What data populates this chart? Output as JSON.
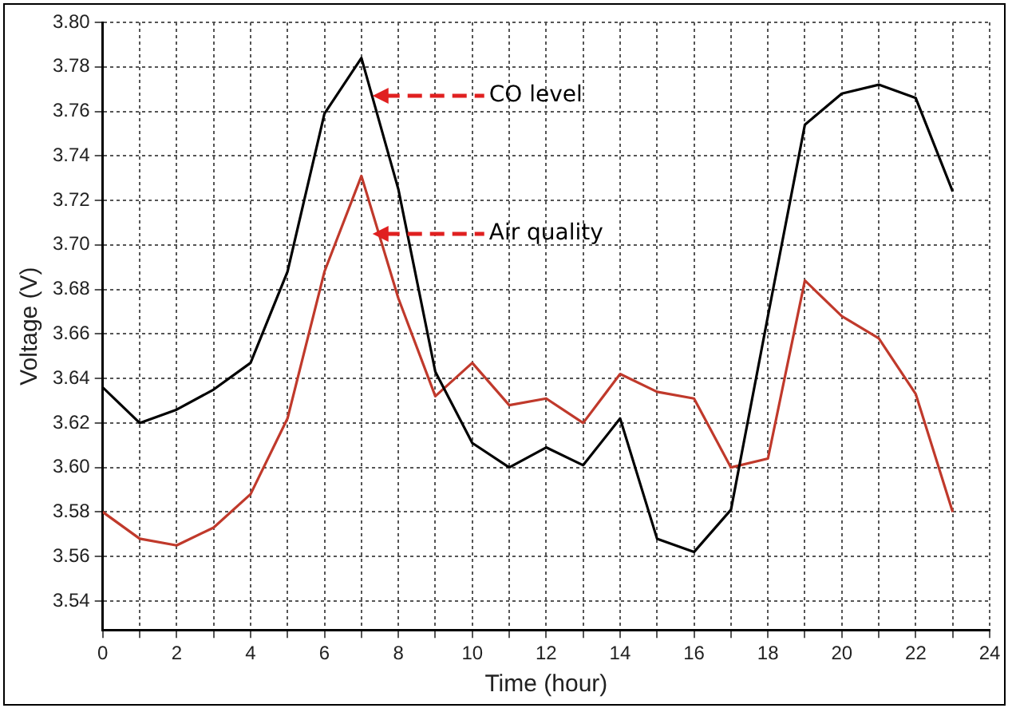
{
  "chart_data": {
    "type": "line",
    "xlabel": "Time (hour)",
    "ylabel": "Voltage (V)",
    "x": [
      0,
      1,
      2,
      3,
      4,
      5,
      6,
      7,
      8,
      9,
      10,
      11,
      12,
      13,
      14,
      15,
      16,
      17,
      18,
      19,
      20,
      21,
      22,
      23
    ],
    "series": [
      {
        "color": "#000000",
        "values": [
          3.636,
          3.62,
          3.626,
          3.635,
          3.647,
          3.688,
          3.759,
          3.784,
          3.725,
          3.643,
          3.611,
          3.6,
          3.609,
          3.601,
          3.622,
          3.568,
          3.562,
          3.581,
          3.668,
          3.754,
          3.768,
          3.772,
          3.766,
          3.724
        ]
      },
      {
        "color": "#c0392b",
        "values": [
          3.58,
          3.568,
          3.565,
          3.573,
          3.588,
          3.622,
          3.688,
          3.731,
          3.676,
          3.632,
          3.647,
          3.628,
          3.631,
          3.62,
          3.642,
          3.634,
          3.631,
          3.6,
          3.604,
          3.684,
          3.668,
          3.658,
          3.633,
          3.58
        ]
      }
    ],
    "annotations": [
      {
        "text": "CO level",
        "x": 7.3,
        "y": 3.767
      },
      {
        "text": "Air quality",
        "x": 7.3,
        "y": 3.705
      }
    ],
    "xlim": [
      0,
      24
    ],
    "ylim": [
      3.527,
      3.8
    ],
    "xticks": [
      0,
      {
        "value": 1,
        "label": null
      },
      2,
      {
        "value": 3,
        "label": null
      },
      4,
      {
        "value": 5,
        "label": null
      },
      6,
      {
        "value": 7,
        "label": null
      },
      8,
      {
        "value": 9,
        "label": null
      },
      10,
      {
        "value": 11,
        "label": null
      },
      12,
      {
        "value": 13,
        "label": null
      },
      14,
      {
        "value": 15,
        "label": null
      },
      16,
      {
        "value": 17,
        "label": null
      },
      18,
      {
        "value": 19,
        "label": null
      },
      20,
      {
        "value": 21,
        "label": null
      },
      22,
      {
        "value": 23,
        "label": null
      },
      24
    ],
    "yticks": [
      {
        "value": 3.54,
        "label": "3.54"
      },
      {
        "value": 3.56,
        "label": "3.56"
      },
      {
        "value": 3.58,
        "label": "3.58"
      },
      {
        "value": 3.6,
        "label": "3.60"
      },
      {
        "value": 3.62,
        "label": "3.62"
      },
      {
        "value": 3.64,
        "label": "3.64"
      },
      {
        "value": 3.66,
        "label": "3.66"
      },
      {
        "value": 3.68,
        "label": "3.68"
      },
      {
        "value": 3.7,
        "label": "3.70"
      },
      {
        "value": 3.72,
        "label": "3.72"
      },
      {
        "value": 3.74,
        "label": "3.74"
      },
      {
        "value": 3.76,
        "label": "3.76"
      },
      {
        "value": 3.78,
        "label": "3.78"
      },
      {
        "value": 3.8,
        "label": "3.80"
      }
    ],
    "grid": true,
    "legend": false,
    "marker": "none",
    "line_style": "solid"
  }
}
